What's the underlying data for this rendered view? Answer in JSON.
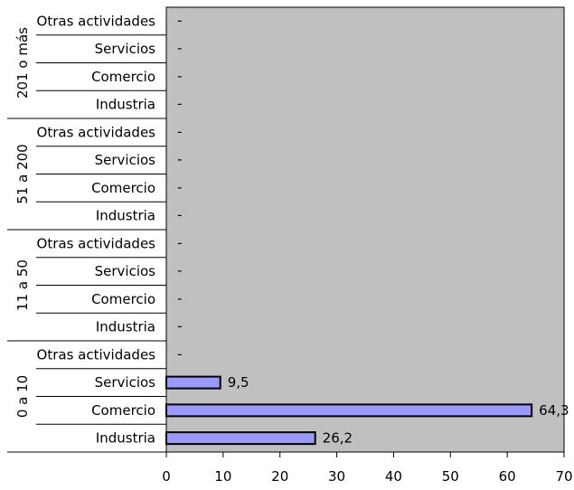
{
  "chart_data": {
    "type": "bar",
    "orientation": "horizontal",
    "title": "",
    "xlabel": "",
    "ylabel": "",
    "xlim": [
      0,
      70
    ],
    "x_ticks": [
      "0",
      "10",
      "20",
      "30",
      "40",
      "50",
      "60",
      "70"
    ],
    "grid": false,
    "legend": "none",
    "colors": {
      "plot_background": "#c0c0c0",
      "bar_fill": "#9999ff",
      "bar_edge": "#000000"
    },
    "groups": [
      {
        "name": "201 o más",
        "categories": [
          "Otras actividades",
          "Servicios",
          "Comercio",
          "Industria"
        ],
        "values": [
          null,
          null,
          null,
          null
        ],
        "labels": [
          "-",
          "-",
          "-",
          "-"
        ]
      },
      {
        "name": "51 a 200",
        "categories": [
          "Otras actividades",
          "Servicios",
          "Comercio",
          "Industria"
        ],
        "values": [
          null,
          null,
          null,
          null
        ],
        "labels": [
          "-",
          "-",
          "-",
          "-"
        ]
      },
      {
        "name": "11 a 50",
        "categories": [
          "Otras actividades",
          "Servicios",
          "Comercio",
          "Industria"
        ],
        "values": [
          null,
          null,
          null,
          null
        ],
        "labels": [
          "-",
          "-",
          "-",
          "-"
        ]
      },
      {
        "name": "0 a 10",
        "categories": [
          "Otras actividades",
          "Servicios",
          "Comercio",
          "Industria"
        ],
        "values": [
          null,
          9.5,
          64.3,
          26.2
        ],
        "labels": [
          "-",
          "9,5",
          "64,3",
          "26,2"
        ]
      }
    ]
  }
}
